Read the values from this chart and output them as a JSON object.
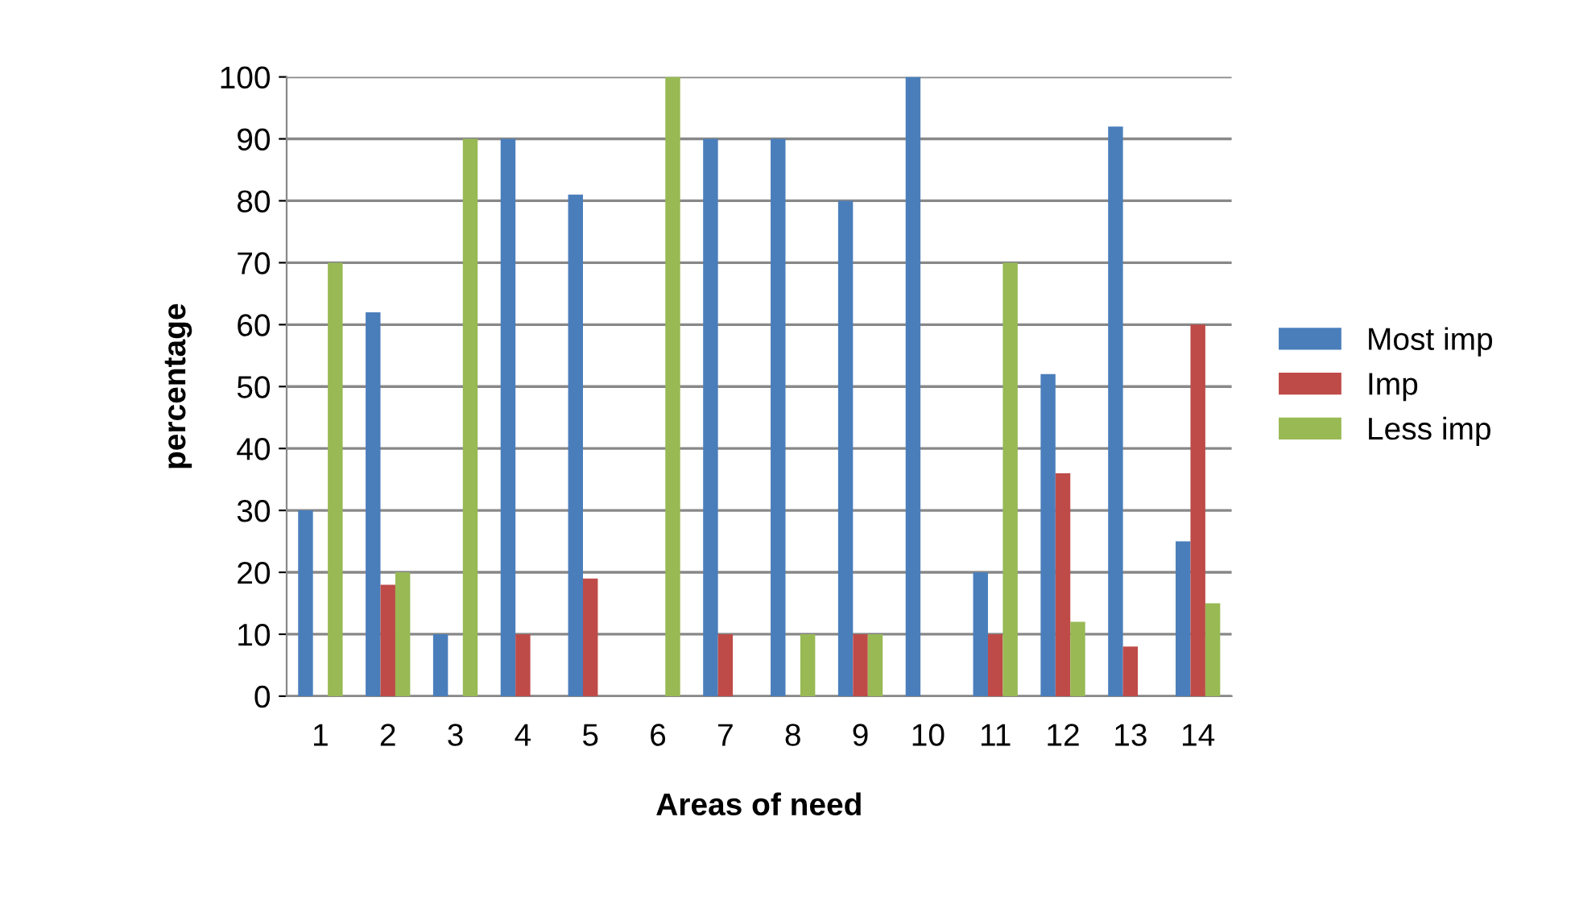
{
  "chart_data": {
    "type": "bar",
    "xlabel": "Areas of need",
    "ylabel": "percentage",
    "categories": [
      "1",
      "2",
      "3",
      "4",
      "5",
      "6",
      "7",
      "8",
      "9",
      "10",
      "11",
      "12",
      "13",
      "14"
    ],
    "series": [
      {
        "name": "Most imp",
        "color": "#4a7ebb",
        "values": [
          30,
          62,
          10,
          90,
          81,
          0,
          90,
          90,
          80,
          100,
          20,
          52,
          92,
          25
        ]
      },
      {
        "name": "Imp",
        "color": "#be4b48",
        "values": [
          0,
          18,
          0,
          10,
          19,
          0,
          10,
          0,
          10,
          0,
          10,
          36,
          8,
          60
        ]
      },
      {
        "name": "Less imp",
        "color": "#98b954",
        "values": [
          70,
          20,
          90,
          0,
          0,
          100,
          0,
          10,
          10,
          0,
          70,
          12,
          0,
          15
        ]
      }
    ],
    "ylim": [
      0,
      100
    ],
    "yticks": [
      0,
      10,
      20,
      30,
      40,
      50,
      60,
      70,
      80,
      90,
      100
    ],
    "grid": "y",
    "legend": "right"
  }
}
